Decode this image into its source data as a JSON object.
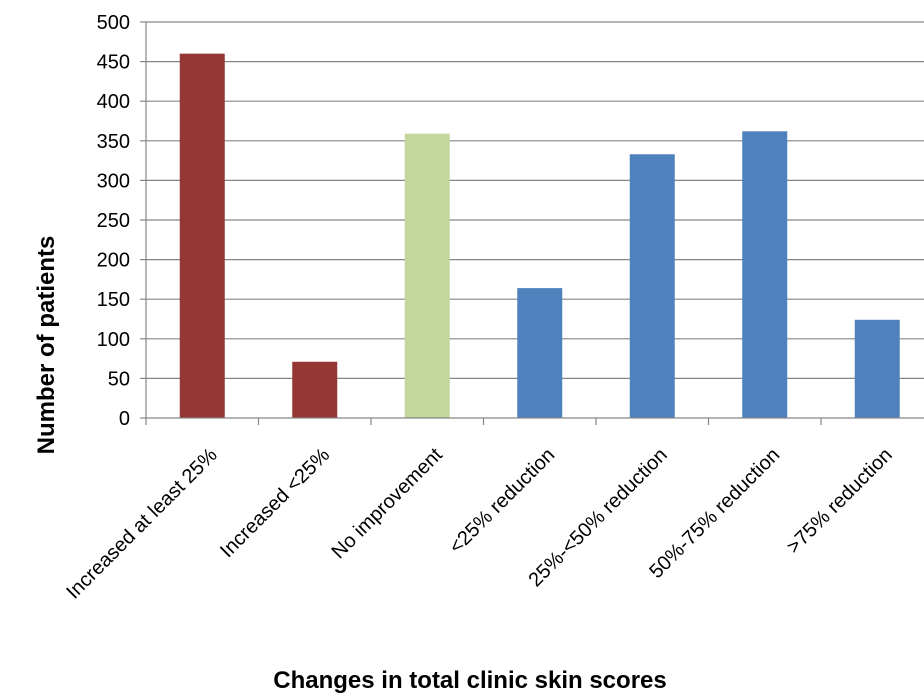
{
  "chart_data": {
    "type": "bar",
    "title": "",
    "xlabel": "Changes in total clinic skin scores",
    "ylabel": "Number of patients",
    "ylim": [
      0,
      500
    ],
    "yticks": [
      "0",
      "50",
      "100",
      "150",
      "200",
      "250",
      "300",
      "350",
      "400",
      "450",
      "500"
    ],
    "grid": true,
    "legend": "none",
    "categories": [
      "Increased at least 25%",
      "Increased <25%",
      "No improvement",
      "<25% reduction",
      "25%-<50% reduction",
      "50%-75% reduction",
      ">75% reduction"
    ],
    "values": [
      460,
      71,
      359,
      164,
      333,
      362,
      124
    ],
    "bar_colors": [
      "#953735",
      "#953735",
      "#C3D69B",
      "#4F81BD",
      "#4F81BD",
      "#4F81BD",
      "#4F81BD"
    ]
  },
  "colors": {
    "gridline": "#868686",
    "axis": "#868686"
  }
}
